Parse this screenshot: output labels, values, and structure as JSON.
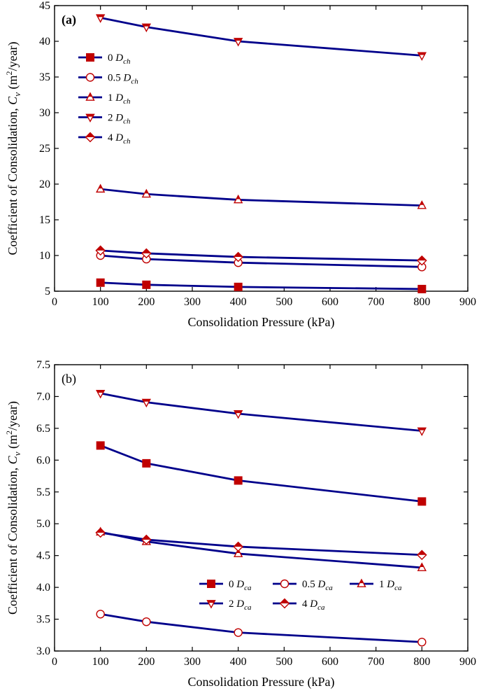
{
  "chart_data": [
    {
      "type": "line",
      "panel_label": "(a)",
      "xlabel": "Consolidation Pressure (kPa)",
      "ylabel": {
        "prefix": "Coefficient of Consolidation, ",
        "var": "C",
        "sub": "v",
        "unit_pre": " (m",
        "sup": "2",
        "unit_post": "/year)"
      },
      "xlim": [
        0,
        900
      ],
      "ylim": [
        5,
        45
      ],
      "xticks": [
        0,
        100,
        200,
        300,
        400,
        500,
        600,
        700,
        800,
        900
      ],
      "yticks": [
        5,
        10,
        15,
        20,
        25,
        30,
        35,
        40,
        45
      ],
      "legend_position": "upper-left",
      "x": [
        100,
        200,
        400,
        800
      ],
      "series": [
        {
          "name": "0 D_ch",
          "num": "0",
          "sym": "D",
          "sub": "ch",
          "marker": "square",
          "values": [
            6.2,
            5.9,
            5.6,
            5.3
          ]
        },
        {
          "name": "0.5 D_ch",
          "num": "0.5",
          "sym": "D",
          "sub": "ch",
          "marker": "circle",
          "values": [
            10.0,
            9.5,
            9.0,
            8.4
          ]
        },
        {
          "name": "1 D_ch",
          "num": "1",
          "sym": "D",
          "sub": "ch",
          "marker": "triangle-up",
          "values": [
            19.3,
            18.6,
            17.8,
            17.0
          ]
        },
        {
          "name": "2 D_ch",
          "num": "2",
          "sym": "D",
          "sub": "ch",
          "marker": "triangle-down",
          "values": [
            43.3,
            42.0,
            40.0,
            38.0
          ]
        },
        {
          "name": "4 D_ch",
          "num": "4",
          "sym": "D",
          "sub": "ch",
          "marker": "diamond",
          "values": [
            10.7,
            10.3,
            9.8,
            9.3
          ]
        }
      ]
    },
    {
      "type": "line",
      "panel_label": "(b)",
      "xlabel": "Consolidation Pressure (kPa)",
      "ylabel": {
        "prefix": "Coefficient of Consolidation, ",
        "var": "C",
        "sub": "v",
        "unit_pre": " (m",
        "sup": "2",
        "unit_post": "/year)"
      },
      "xlim": [
        0,
        900
      ],
      "ylim": [
        3.0,
        7.5
      ],
      "xticks": [
        0,
        100,
        200,
        300,
        400,
        500,
        600,
        700,
        800,
        900
      ],
      "yticks": [
        "3.0",
        "3.5",
        "4.0",
        "4.5",
        "5.0",
        "5.5",
        "6.0",
        "6.5",
        "7.0",
        "7.5"
      ],
      "legend_position": "lower-right",
      "x": [
        100,
        200,
        400,
        800
      ],
      "series": [
        {
          "name": "0 D_ca",
          "num": "0",
          "sym": "D",
          "sub": "ca",
          "marker": "square",
          "values": [
            6.23,
            5.95,
            5.68,
            5.35
          ]
        },
        {
          "name": "0.5 D_ca",
          "num": "0.5",
          "sym": "D",
          "sub": "ca",
          "marker": "circle",
          "values": [
            3.58,
            3.46,
            3.29,
            3.14
          ]
        },
        {
          "name": "1 D_ca",
          "num": "1",
          "sym": "D",
          "sub": "ca",
          "marker": "triangle-up",
          "values": [
            4.87,
            4.72,
            4.53,
            4.31
          ]
        },
        {
          "name": "2 D_ca",
          "num": "2",
          "sym": "D",
          "sub": "ca",
          "marker": "triangle-down",
          "values": [
            7.05,
            6.91,
            6.73,
            6.46
          ]
        },
        {
          "name": "4 D_ca",
          "num": "4",
          "sym": "D",
          "sub": "ca",
          "marker": "diamond",
          "values": [
            4.86,
            4.75,
            4.64,
            4.51
          ]
        }
      ]
    }
  ],
  "colors": {
    "line": "#00008B",
    "marker": "#C00000",
    "axis": "#000000"
  }
}
